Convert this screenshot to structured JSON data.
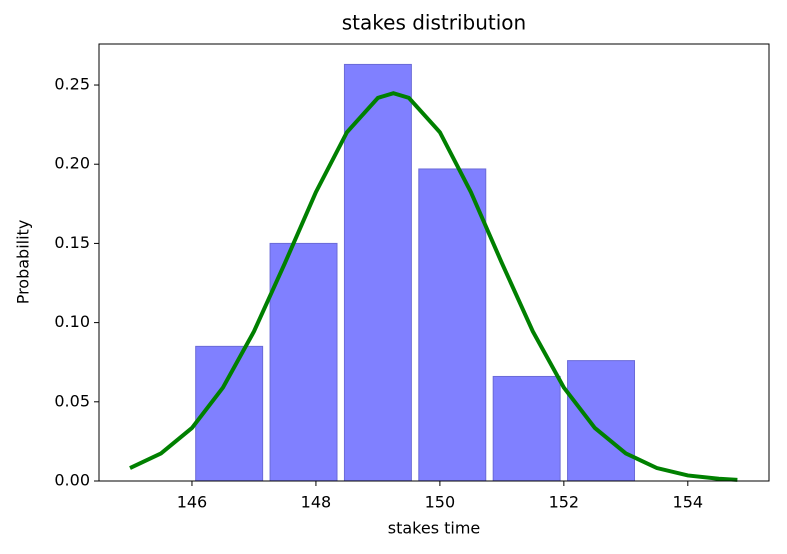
{
  "chart_data": {
    "type": "histogram",
    "title": "stakes distribution",
    "xlabel": "stakes time",
    "ylabel": "Probability",
    "bins": [
      146.0,
      147.2,
      148.4,
      149.6,
      150.8,
      152.0,
      153.2
    ],
    "values": [
      0.085,
      0.15,
      0.263,
      0.197,
      0.066,
      0.076
    ],
    "color": "#8080ff",
    "edgecolor": "#6a6ad8",
    "curve": {
      "color": "#008000",
      "x": [
        145,
        145.5,
        146,
        146.5,
        147,
        147.5,
        148,
        148.5,
        149,
        149.25,
        149.5,
        150,
        150.5,
        151,
        151.5,
        152,
        152.5,
        153,
        153.5,
        154,
        154.5,
        154.8
      ],
      "values": [
        0.0082,
        0.0174,
        0.0335,
        0.059,
        0.0944,
        0.1376,
        0.1824,
        0.2202,
        0.2419,
        0.2448,
        0.2419,
        0.2202,
        0.1824,
        0.1376,
        0.0944,
        0.059,
        0.0335,
        0.0174,
        0.0082,
        0.0035,
        0.0014,
        0.0007
      ]
    },
    "xlim": [
      144.5,
      155.31
    ],
    "ylim": [
      0,
      0.2759
    ],
    "xticks": [
      146,
      148,
      150,
      152,
      154
    ],
    "yticks": [
      {
        "value": 0,
        "label": "0.00"
      },
      {
        "value": 0.05,
        "label": "0.05"
      },
      {
        "value": 0.1,
        "label": "0.10"
      },
      {
        "value": 0.15,
        "label": "0.15"
      },
      {
        "value": 0.2,
        "label": "0.20"
      },
      {
        "value": 0.25,
        "label": "0.25"
      }
    ]
  }
}
